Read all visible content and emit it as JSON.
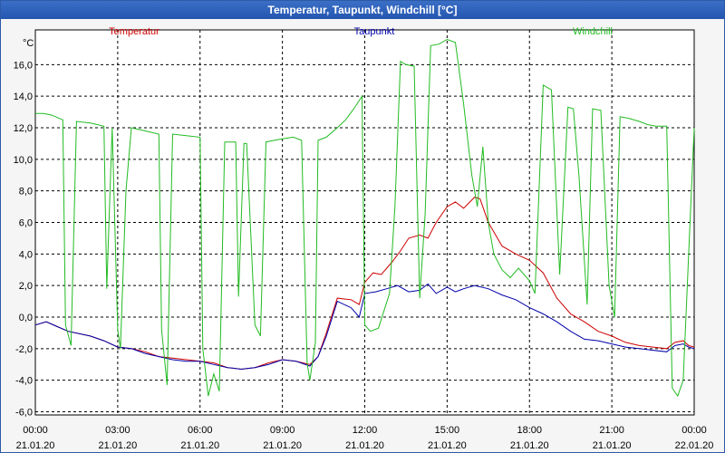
{
  "window": {
    "title": "Temperatur, Taupunkt, Windchill [°C]"
  },
  "chart_data": {
    "type": "line",
    "title": "Temperatur, Taupunkt, Windchill [°C]",
    "ylabel": "°C",
    "ylim": [
      -6.2,
      18.2
    ],
    "xlim": [
      0,
      24
    ],
    "grid": true,
    "y_ticks": [
      -6.0,
      -4.0,
      -2.0,
      0.0,
      2.0,
      4.0,
      6.0,
      8.0,
      10.0,
      12.0,
      14.0,
      16.0
    ],
    "y_tick_labels": [
      "-6,0",
      "-4,0",
      "-2,0",
      "0,0",
      "2,0",
      "4,0",
      "6,0",
      "8,0",
      "10,0",
      "12,0",
      "14,0",
      "16,0"
    ],
    "x_ticks": [
      0,
      3,
      6,
      9,
      12,
      15,
      18,
      21,
      24
    ],
    "x_tick_times": [
      "00:00",
      "03:00",
      "06:00",
      "09:00",
      "12:00",
      "15:00",
      "18:00",
      "21:00",
      "00:00"
    ],
    "x_tick_dates": [
      "21.01.20",
      "21.01.20",
      "21.01.20",
      "21.01.20",
      "21.01.20",
      "21.01.20",
      "21.01.20",
      "21.01.20",
      "22.01.20"
    ],
    "series": [
      {
        "name": "Temperatur",
        "color": "#cc0000",
        "points": [
          [
            0,
            -0.5
          ],
          [
            0.4,
            -0.3
          ],
          [
            0.8,
            -0.6
          ],
          [
            1.2,
            -0.9
          ],
          [
            2,
            -1.2
          ],
          [
            2.5,
            -1.5
          ],
          [
            3,
            -1.9
          ],
          [
            3.5,
            -2.0
          ],
          [
            4,
            -2.2
          ],
          [
            4.5,
            -2.5
          ],
          [
            5,
            -2.6
          ],
          [
            5.5,
            -2.7
          ],
          [
            6,
            -2.8
          ],
          [
            6.5,
            -2.9
          ],
          [
            7,
            -3.2
          ],
          [
            7.5,
            -3.3
          ],
          [
            8,
            -3.2
          ],
          [
            8.5,
            -2.9
          ],
          [
            9,
            -2.7
          ],
          [
            9.5,
            -2.8
          ],
          [
            10,
            -3.0
          ],
          [
            10.3,
            -2.5
          ],
          [
            10.6,
            -1.0
          ],
          [
            11,
            1.2
          ],
          [
            11.5,
            1.1
          ],
          [
            11.8,
            0.8
          ],
          [
            12,
            2.2
          ],
          [
            12.3,
            2.8
          ],
          [
            12.6,
            2.7
          ],
          [
            13,
            3.5
          ],
          [
            13.3,
            4.2
          ],
          [
            13.6,
            5.0
          ],
          [
            14,
            5.2
          ],
          [
            14.3,
            5.0
          ],
          [
            14.6,
            6.0
          ],
          [
            15,
            7.0
          ],
          [
            15.3,
            7.3
          ],
          [
            15.6,
            6.9
          ],
          [
            16,
            7.6
          ],
          [
            16.2,
            7.5
          ],
          [
            16.5,
            6.0
          ],
          [
            17,
            4.5
          ],
          [
            17.5,
            4.0
          ],
          [
            18,
            3.6
          ],
          [
            18.5,
            2.8
          ],
          [
            19,
            1.2
          ],
          [
            19.5,
            0.2
          ],
          [
            20,
            -0.3
          ],
          [
            20.5,
            -0.9
          ],
          [
            21,
            -1.2
          ],
          [
            21.5,
            -1.6
          ],
          [
            22,
            -1.8
          ],
          [
            22.5,
            -1.9
          ],
          [
            23,
            -2.0
          ],
          [
            23.3,
            -1.6
          ],
          [
            23.6,
            -1.5
          ],
          [
            23.8,
            -1.8
          ],
          [
            24,
            -1.9
          ]
        ]
      },
      {
        "name": "Taupunkt",
        "color": "#0000aa",
        "points": [
          [
            0,
            -0.5
          ],
          [
            0.4,
            -0.3
          ],
          [
            0.8,
            -0.6
          ],
          [
            1.2,
            -0.9
          ],
          [
            2,
            -1.2
          ],
          [
            2.5,
            -1.5
          ],
          [
            3,
            -1.9
          ],
          [
            3.5,
            -2.0
          ],
          [
            4,
            -2.3
          ],
          [
            4.5,
            -2.5
          ],
          [
            5,
            -2.7
          ],
          [
            5.5,
            -2.8
          ],
          [
            6,
            -2.8
          ],
          [
            6.5,
            -3.0
          ],
          [
            7,
            -3.2
          ],
          [
            7.5,
            -3.3
          ],
          [
            8,
            -3.2
          ],
          [
            8.5,
            -3.0
          ],
          [
            9,
            -2.7
          ],
          [
            9.5,
            -2.8
          ],
          [
            10,
            -3.1
          ],
          [
            10.3,
            -2.5
          ],
          [
            10.6,
            -1.2
          ],
          [
            11,
            1.0
          ],
          [
            11.5,
            0.6
          ],
          [
            11.8,
            0.0
          ],
          [
            12,
            1.5
          ],
          [
            12.4,
            1.6
          ],
          [
            12.8,
            1.8
          ],
          [
            13.2,
            2.0
          ],
          [
            13.6,
            1.6
          ],
          [
            14,
            1.7
          ],
          [
            14.3,
            2.1
          ],
          [
            14.6,
            1.5
          ],
          [
            15,
            1.9
          ],
          [
            15.3,
            1.6
          ],
          [
            15.6,
            1.8
          ],
          [
            16,
            2.0
          ],
          [
            16.5,
            1.8
          ],
          [
            17,
            1.4
          ],
          [
            17.5,
            1.1
          ],
          [
            18,
            0.6
          ],
          [
            18.5,
            0.2
          ],
          [
            19,
            -0.3
          ],
          [
            19.5,
            -0.9
          ],
          [
            20,
            -1.4
          ],
          [
            20.5,
            -1.5
          ],
          [
            21,
            -1.7
          ],
          [
            21.5,
            -1.9
          ],
          [
            22,
            -2.0
          ],
          [
            22.5,
            -2.1
          ],
          [
            23,
            -2.2
          ],
          [
            23.3,
            -1.8
          ],
          [
            23.6,
            -1.7
          ],
          [
            23.8,
            -1.9
          ],
          [
            24,
            -2.0
          ]
        ]
      },
      {
        "name": "Windchill",
        "color": "#22bb22",
        "points": [
          [
            0,
            12.9
          ],
          [
            0.3,
            12.9
          ],
          [
            0.6,
            12.8
          ],
          [
            1,
            12.5
          ],
          [
            1.1,
            -0.5
          ],
          [
            1.3,
            -1.8
          ],
          [
            1.5,
            12.4
          ],
          [
            2,
            12.3
          ],
          [
            2.5,
            12.1
          ],
          [
            2.6,
            1.8
          ],
          [
            2.8,
            12.0
          ],
          [
            3,
            -0.8
          ],
          [
            3.1,
            -2.0
          ],
          [
            3.3,
            8.0
          ],
          [
            3.5,
            12.0
          ],
          [
            4,
            11.8
          ],
          [
            4.5,
            11.6
          ],
          [
            4.6,
            -0.8
          ],
          [
            4.8,
            -4.3
          ],
          [
            5,
            11.6
          ],
          [
            5.5,
            11.5
          ],
          [
            6,
            11.4
          ],
          [
            6.1,
            -2.0
          ],
          [
            6.3,
            -5.0
          ],
          [
            6.5,
            -3.6
          ],
          [
            6.7,
            -4.7
          ],
          [
            6.9,
            11.1
          ],
          [
            7.3,
            11.1
          ],
          [
            7.4,
            1.3
          ],
          [
            7.6,
            11.0
          ],
          [
            7.7,
            11.0
          ],
          [
            8,
            -0.5
          ],
          [
            8.2,
            -1.2
          ],
          [
            8.4,
            11.1
          ],
          [
            8.7,
            11.2
          ],
          [
            9,
            11.3
          ],
          [
            9.4,
            11.4
          ],
          [
            9.7,
            11.2
          ],
          [
            9.9,
            -2.9
          ],
          [
            10,
            -4.0
          ],
          [
            10.2,
            -1.6
          ],
          [
            10.3,
            11.2
          ],
          [
            10.6,
            11.4
          ],
          [
            11,
            12.0
          ],
          [
            11.3,
            12.5
          ],
          [
            11.6,
            13.2
          ],
          [
            11.9,
            14.0
          ],
          [
            12,
            -0.5
          ],
          [
            12.2,
            -0.9
          ],
          [
            12.5,
            -0.7
          ],
          [
            12.9,
            1.5
          ],
          [
            13.1,
            7.0
          ],
          [
            13.3,
            16.2
          ],
          [
            13.5,
            16.0
          ],
          [
            13.8,
            15.9
          ],
          [
            14,
            1.2
          ],
          [
            14.2,
            6.5
          ],
          [
            14.4,
            17.2
          ],
          [
            14.7,
            17.3
          ],
          [
            15,
            17.6
          ],
          [
            15.3,
            17.4
          ],
          [
            15.6,
            13.5
          ],
          [
            15.9,
            9.0
          ],
          [
            16.1,
            7.0
          ],
          [
            16.3,
            10.8
          ],
          [
            16.5,
            6.0
          ],
          [
            16.7,
            4.0
          ],
          [
            17,
            3.0
          ],
          [
            17.3,
            2.5
          ],
          [
            17.6,
            3.1
          ],
          [
            18,
            2.3
          ],
          [
            18.2,
            1.5
          ],
          [
            18.5,
            14.7
          ],
          [
            18.8,
            14.4
          ],
          [
            19.1,
            2.7
          ],
          [
            19.4,
            13.3
          ],
          [
            19.6,
            13.2
          ],
          [
            19.8,
            9.0
          ],
          [
            20.1,
            0.8
          ],
          [
            20.3,
            13.2
          ],
          [
            20.6,
            13.1
          ],
          [
            20.9,
            2.0
          ],
          [
            21.1,
            0.0
          ],
          [
            21.3,
            12.7
          ],
          [
            21.6,
            12.6
          ],
          [
            22,
            12.4
          ],
          [
            22.3,
            12.2
          ],
          [
            22.6,
            12.1
          ],
          [
            23,
            12.1
          ],
          [
            23.2,
            -4.5
          ],
          [
            23.4,
            -5.0
          ],
          [
            23.6,
            -4.0
          ],
          [
            23.8,
            4.0
          ],
          [
            24,
            12.0
          ]
        ]
      }
    ]
  }
}
